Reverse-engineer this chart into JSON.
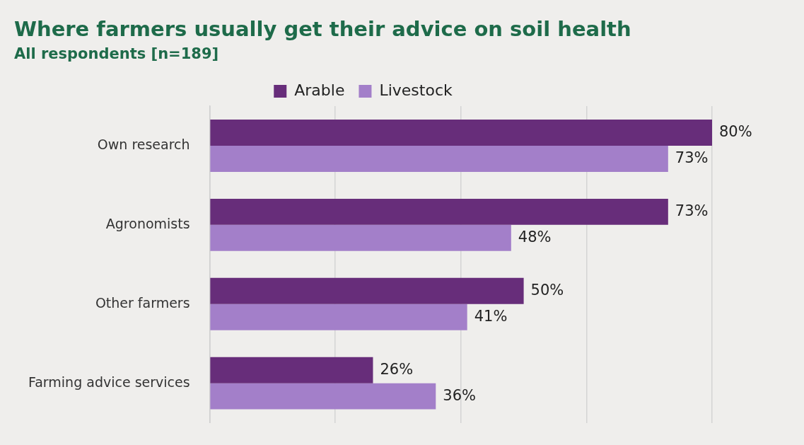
{
  "chart_data": {
    "type": "bar",
    "orientation": "horizontal",
    "title": "Where farmers usually get their advice on soil health",
    "subtitle": "All respondents [n=189]",
    "categories": [
      "Own research",
      "Agronomists",
      "Other farmers",
      "Farming advice services"
    ],
    "series": [
      {
        "name": "Arable",
        "color": "#672d7a",
        "values": [
          80,
          73,
          50,
          26
        ],
        "value_labels": [
          "80%",
          "73%",
          "50%",
          "26%"
        ]
      },
      {
        "name": "Livestock",
        "color": "#a37fc9",
        "values": [
          73,
          48,
          41,
          36
        ],
        "value_labels": [
          "73%",
          "48%",
          "41%",
          "36%"
        ]
      }
    ],
    "xlim": [
      0,
      80
    ],
    "xticks": [
      {
        "value": 0,
        "label": null
      },
      {
        "value": 20,
        "label": null
      },
      {
        "value": 40,
        "label": null
      },
      {
        "value": 60,
        "label": null
      },
      {
        "value": 80,
        "label": null
      }
    ],
    "tick_labels": "y",
    "grid": "x",
    "legend": "top"
  }
}
